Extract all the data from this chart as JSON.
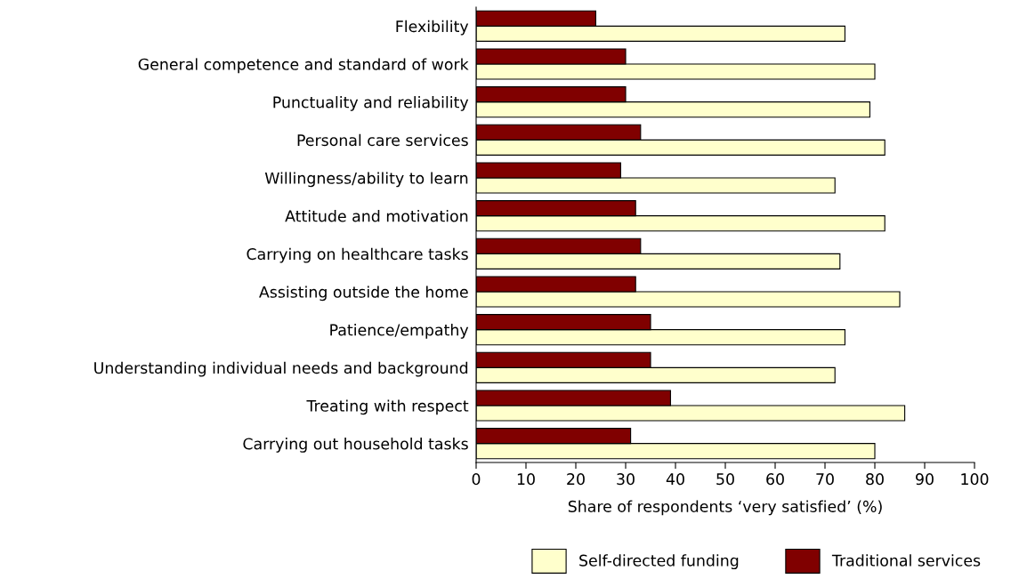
{
  "chart_data": {
    "type": "bar",
    "orientation": "horizontal",
    "xlabel": "Share of respondents ‘very satisfied’ (%)",
    "categories": [
      "Flexibility",
      "General competence and standard of work",
      "Punctuality and reliability",
      "Personal care services",
      "Willingness/ability to learn",
      "Attitude and motivation",
      "Carrying on healthcare tasks",
      "Assisting outside the home",
      "Patience/empathy",
      "Understanding individual needs and background",
      "Treating with respect",
      "Carrying out household tasks"
    ],
    "series": [
      {
        "name": "Self-directed funding",
        "color": "#ffffcc",
        "values": [
          74,
          80,
          79,
          82,
          72,
          82,
          73,
          85,
          74,
          72,
          86,
          80
        ]
      },
      {
        "name": "Traditional services",
        "color": "#800000",
        "values": [
          24,
          30,
          30,
          33,
          29,
          32,
          33,
          32,
          35,
          35,
          39,
          31
        ]
      }
    ],
    "xlim": [
      0,
      100
    ],
    "xticks": [
      0,
      10,
      20,
      30,
      40,
      50,
      60,
      70,
      80,
      90,
      100
    ],
    "grid": false,
    "legend": "bottom"
  }
}
